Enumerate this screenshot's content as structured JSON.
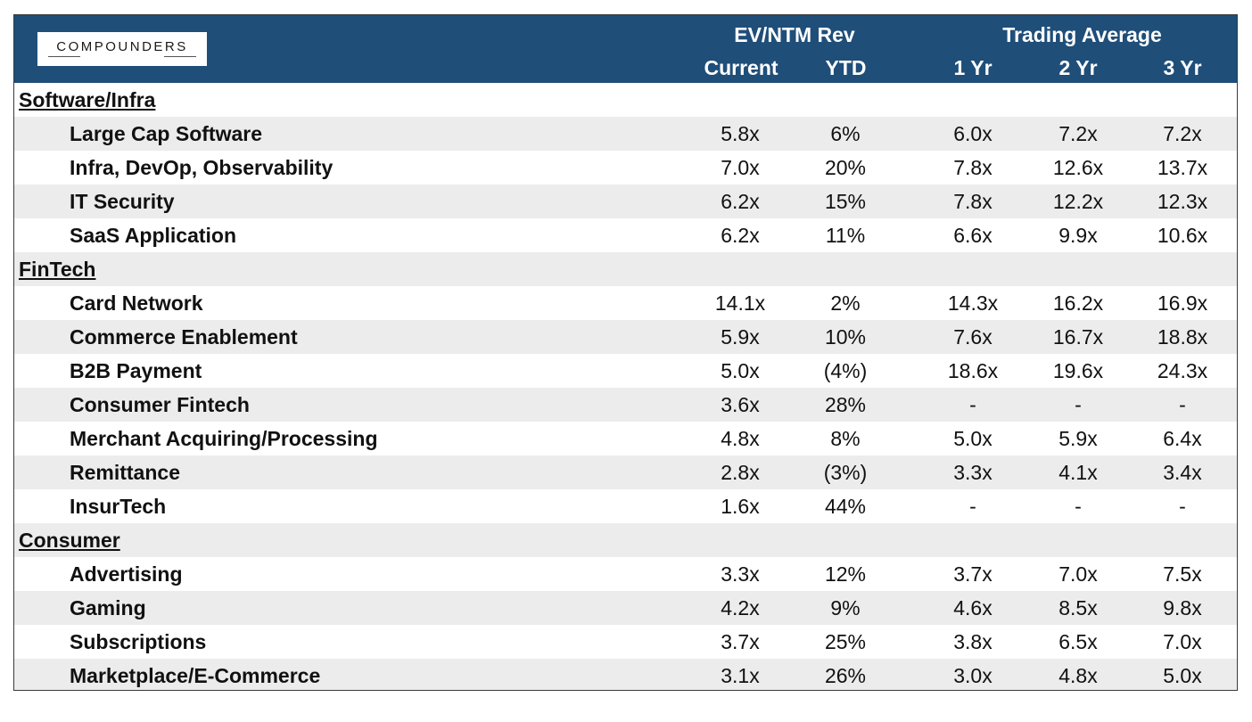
{
  "logo_text": "COMPOUNDERS",
  "colors": {
    "header_bg": "#1f4e79",
    "row_shade": "#ececec",
    "header_text": "#ffffff"
  },
  "header": {
    "group1": "EV/NTM Rev",
    "group2": "Trading Average",
    "columns": [
      "Current",
      "YTD",
      "1 Yr",
      "2 Yr",
      "3 Yr"
    ]
  },
  "rows": [
    {
      "type": "section",
      "label": "Software/Infra"
    },
    {
      "type": "item",
      "label": "Large Cap Software",
      "values": [
        "5.8x",
        "6%",
        "6.0x",
        "7.2x",
        "7.2x"
      ]
    },
    {
      "type": "item",
      "label": "Infra, DevOp, Observability",
      "values": [
        "7.0x",
        "20%",
        "7.8x",
        "12.6x",
        "13.7x"
      ]
    },
    {
      "type": "item",
      "label": "IT Security",
      "values": [
        "6.2x",
        "15%",
        "7.8x",
        "12.2x",
        "12.3x"
      ]
    },
    {
      "type": "item",
      "label": "SaaS Application",
      "values": [
        "6.2x",
        "11%",
        "6.6x",
        "9.9x",
        "10.6x"
      ]
    },
    {
      "type": "section",
      "label": "FinTech"
    },
    {
      "type": "item",
      "label": "Card Network",
      "values": [
        "14.1x",
        "2%",
        "14.3x",
        "16.2x",
        "16.9x"
      ]
    },
    {
      "type": "item",
      "label": "Commerce Enablement",
      "values": [
        "5.9x",
        "10%",
        "7.6x",
        "16.7x",
        "18.8x"
      ]
    },
    {
      "type": "item",
      "label": "B2B Payment",
      "values": [
        "5.0x",
        "(4%)",
        "18.6x",
        "19.6x",
        "24.3x"
      ]
    },
    {
      "type": "item",
      "label": "Consumer Fintech",
      "values": [
        "3.6x",
        "28%",
        "-",
        "-",
        "-"
      ]
    },
    {
      "type": "item",
      "label": "Merchant Acquiring/Processing",
      "values": [
        "4.8x",
        "8%",
        "5.0x",
        "5.9x",
        "6.4x"
      ]
    },
    {
      "type": "item",
      "label": "Remittance",
      "values": [
        "2.8x",
        "(3%)",
        "3.3x",
        "4.1x",
        "3.4x"
      ]
    },
    {
      "type": "item",
      "label": "InsurTech",
      "values": [
        "1.6x",
        "44%",
        "-",
        "-",
        "-"
      ]
    },
    {
      "type": "section",
      "label": "Consumer"
    },
    {
      "type": "item",
      "label": "Advertising",
      "values": [
        "3.3x",
        "12%",
        "3.7x",
        "7.0x",
        "7.5x"
      ]
    },
    {
      "type": "item",
      "label": "Gaming",
      "values": [
        "4.2x",
        "9%",
        "4.6x",
        "8.5x",
        "9.8x"
      ]
    },
    {
      "type": "item",
      "label": "Subscriptions",
      "values": [
        "3.7x",
        "25%",
        "3.8x",
        "6.5x",
        "7.0x"
      ]
    },
    {
      "type": "item",
      "label": "Marketplace/E-Commerce",
      "values": [
        "3.1x",
        "26%",
        "3.0x",
        "4.8x",
        "5.0x"
      ]
    }
  ]
}
